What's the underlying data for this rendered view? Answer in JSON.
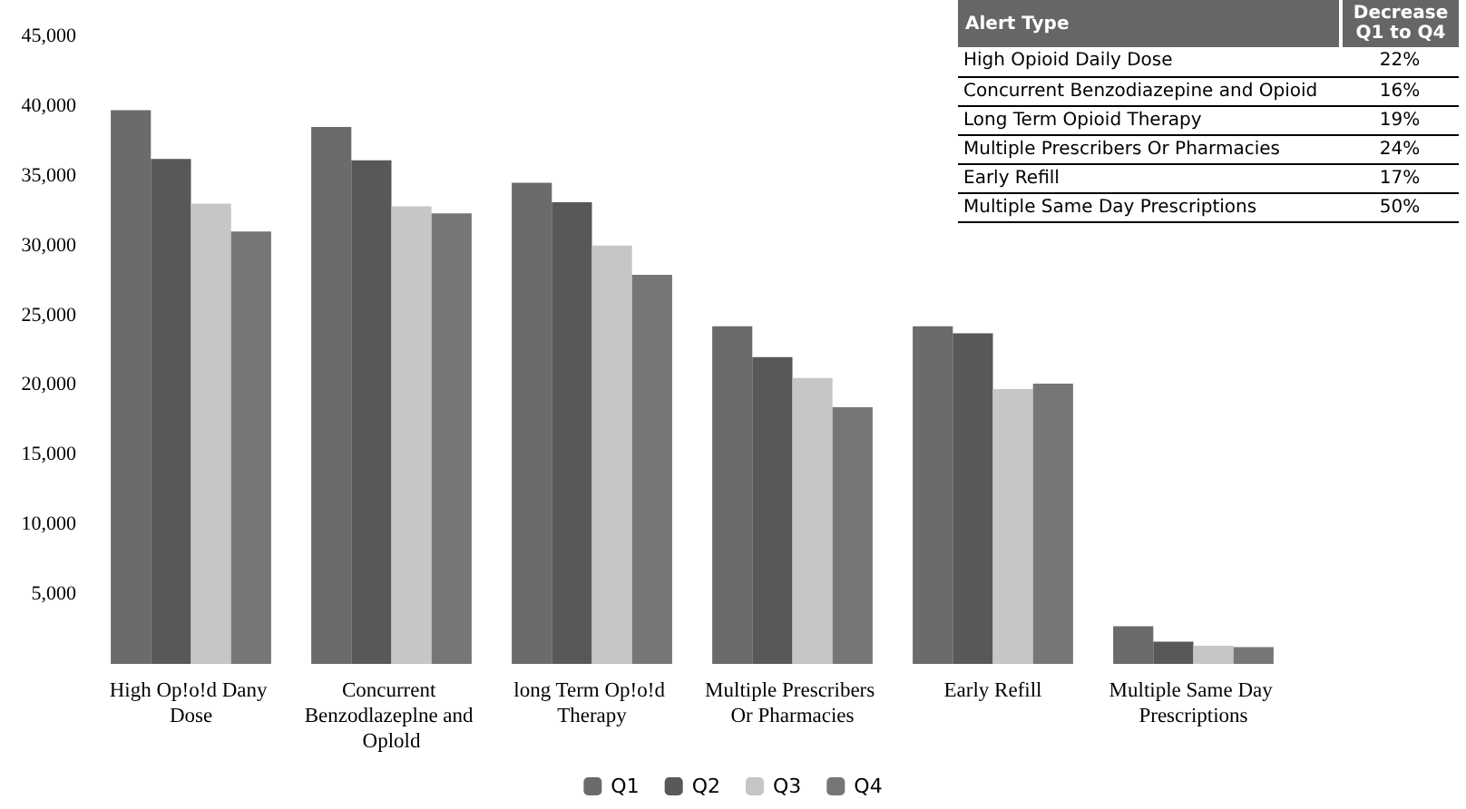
{
  "chart_data": {
    "type": "bar",
    "categories": [
      "High Op!o!d Dany Dose",
      "Concurrent Benzodlazeplne and Oplold",
      "long Term Op!o!d Therapy",
      "Multiple Prescribers Or Pharmacies",
      "Early Refill",
      "Multiple Same Day Prescriptions"
    ],
    "series": [
      {
        "name": "Q1",
        "color": "#6b6b6b",
        "values": [
          39700,
          38500,
          34500,
          24200,
          24200,
          2700
        ]
      },
      {
        "name": "Q2",
        "color": "#585858",
        "values": [
          36200,
          36100,
          33100,
          22000,
          23700,
          1600
        ]
      },
      {
        "name": "Q3",
        "color": "#c6c6c6",
        "values": [
          33000,
          32800,
          30000,
          20500,
          19700,
          1300
        ]
      },
      {
        "name": "Q4",
        "color": "#767676",
        "values": [
          31000,
          32300,
          27900,
          18400,
          20100,
          1200
        ]
      }
    ],
    "ylim": [
      0,
      45000
    ],
    "yticks": [
      {
        "value": 5000,
        "label": "5,000"
      },
      {
        "value": 10000,
        "label": "10,000"
      },
      {
        "value": 15000,
        "label": "15,000"
      },
      {
        "value": 20000,
        "label": "20,000"
      },
      {
        "value": 25000,
        "label": "25,000"
      },
      {
        "value": 30000,
        "label": "30,000"
      },
      {
        "value": 35000,
        "label": "35,000"
      },
      {
        "value": 40000,
        "label": "40,000"
      },
      {
        "value": 45000,
        "label": "45,000"
      }
    ],
    "grid": false,
    "legend": "bottom",
    "tick_labels": "xy",
    "annotations": [
      "Alert Type",
      "Decrease Q1 to Q4",
      "High Opioid Daily Dose",
      "22%",
      "Concurrent Benzodiazepine and Opioid",
      "16%",
      "Long Term Opioid Therapy",
      "19%",
      "Multiple Prescribers Or Pharmacies",
      "24%",
      "Early Refill",
      "17%",
      "Multiple Same Day Prescriptions",
      "50%"
    ]
  }
}
